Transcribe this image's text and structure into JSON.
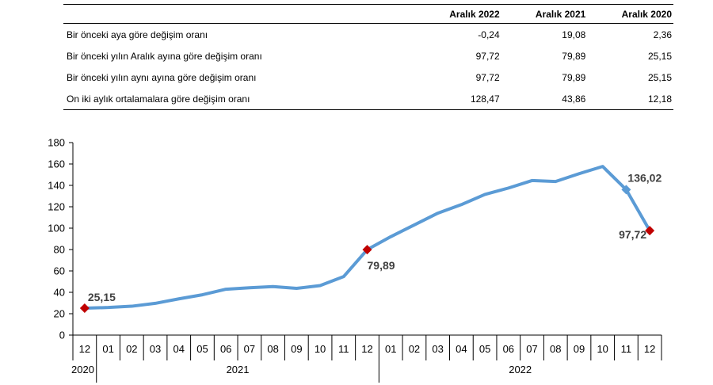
{
  "table": {
    "headers": [
      "",
      "Aralık 2022",
      "Aralık 2021",
      "Aralık 2020"
    ],
    "rows": [
      {
        "label": "Bir önceki aya göre değişim oranı",
        "values": [
          "-0,24",
          "19,08",
          "2,36"
        ]
      },
      {
        "label": "Bir önceki yılın Aralık ayına göre değişim oranı",
        "values": [
          "97,72",
          "79,89",
          "25,15"
        ]
      },
      {
        "label": "Bir önceki yılın aynı ayına göre değişim oranı",
        "values": [
          "97,72",
          "79,89",
          "25,15"
        ]
      },
      {
        "label": "On iki aylık ortalamalara göre değişim oranı",
        "values": [
          "128,47",
          "43,86",
          "12,18"
        ]
      }
    ]
  },
  "chart_data": {
    "type": "line",
    "title": "",
    "xlabel": "",
    "ylabel": "",
    "ylim": [
      0,
      180
    ],
    "yticks": [
      0,
      20,
      40,
      60,
      80,
      100,
      120,
      140,
      160,
      180
    ],
    "categories": [
      "12",
      "01",
      "02",
      "03",
      "04",
      "05",
      "06",
      "07",
      "08",
      "09",
      "10",
      "11",
      "12",
      "01",
      "02",
      "03",
      "04",
      "05",
      "06",
      "07",
      "08",
      "09",
      "10",
      "11",
      "12"
    ],
    "year_groups": [
      {
        "label": "2020",
        "count": 1
      },
      {
        "label": "2021",
        "count": 12
      },
      {
        "label": "2022",
        "count": 12
      }
    ],
    "series": [
      {
        "name": "",
        "color": "#5b9bd5",
        "values": [
          25.15,
          25.8,
          27.0,
          29.7,
          33.9,
          37.7,
          42.9,
          44.3,
          45.4,
          43.7,
          46.3,
          54.7,
          79.89,
          92.0,
          103.0,
          114.0,
          122.0,
          131.5,
          137.5,
          144.5,
          143.6,
          150.9,
          157.7,
          136.02,
          97.72
        ]
      }
    ],
    "annotations": [
      {
        "index": 0,
        "text": "25,15",
        "marker": "diamond",
        "color": "#c00000"
      },
      {
        "index": 12,
        "text": "79,89",
        "marker": "diamond",
        "color": "#c00000"
      },
      {
        "index": 23,
        "text": "136,02",
        "marker": "diamond",
        "color": "#5b9bd5"
      },
      {
        "index": 24,
        "text": "97,72",
        "marker": "diamond",
        "color": "#c00000"
      }
    ]
  }
}
